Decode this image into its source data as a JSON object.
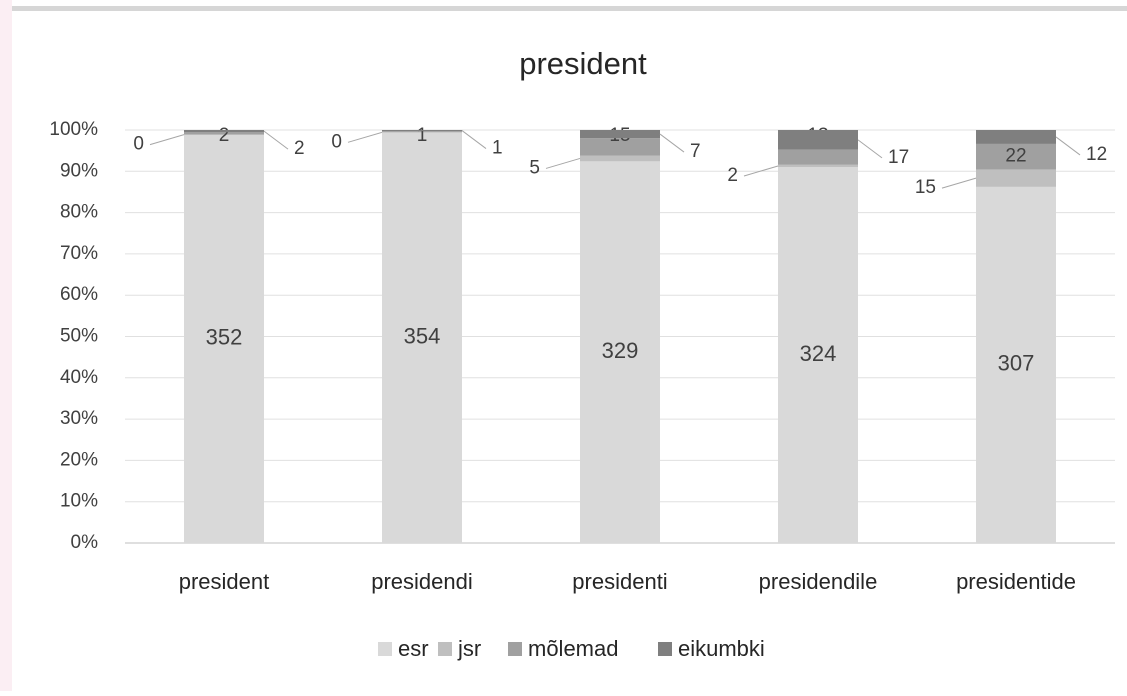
{
  "chart_data": {
    "type": "stacked_percent_bar",
    "title": "president",
    "categories": [
      "president",
      "presidendi",
      "presidenti",
      "presidendile",
      "presidentide"
    ],
    "series": [
      {
        "name": "esr",
        "color": "#d9d9d9",
        "values": [
          352,
          354,
          329,
          324,
          307
        ]
      },
      {
        "name": "jsr",
        "color": "#bfbfbf",
        "values": [
          0,
          0,
          5,
          2,
          15
        ]
      },
      {
        "name": "mõlemad",
        "color": "#a0a0a0",
        "values": [
          2,
          1,
          15,
          13,
          22
        ]
      },
      {
        "name": "eikumbki",
        "color": "#7f7f7f",
        "values": [
          2,
          1,
          7,
          17,
          12
        ]
      }
    ],
    "ylim": [
      0,
      100
    ],
    "yticks": [
      {
        "value": 0,
        "label": "0%"
      },
      {
        "value": 10,
        "label": "10%"
      },
      {
        "value": 20,
        "label": "20%"
      },
      {
        "value": 30,
        "label": "30%"
      },
      {
        "value": 40,
        "label": "40%"
      },
      {
        "value": 50,
        "label": "50%"
      },
      {
        "value": 60,
        "label": "60%"
      },
      {
        "value": 70,
        "label": "70%"
      },
      {
        "value": 80,
        "label": "80%"
      },
      {
        "value": 90,
        "label": "90%"
      },
      {
        "value": 100,
        "label": "100%"
      }
    ],
    "grid": true,
    "legend": "bottom"
  }
}
